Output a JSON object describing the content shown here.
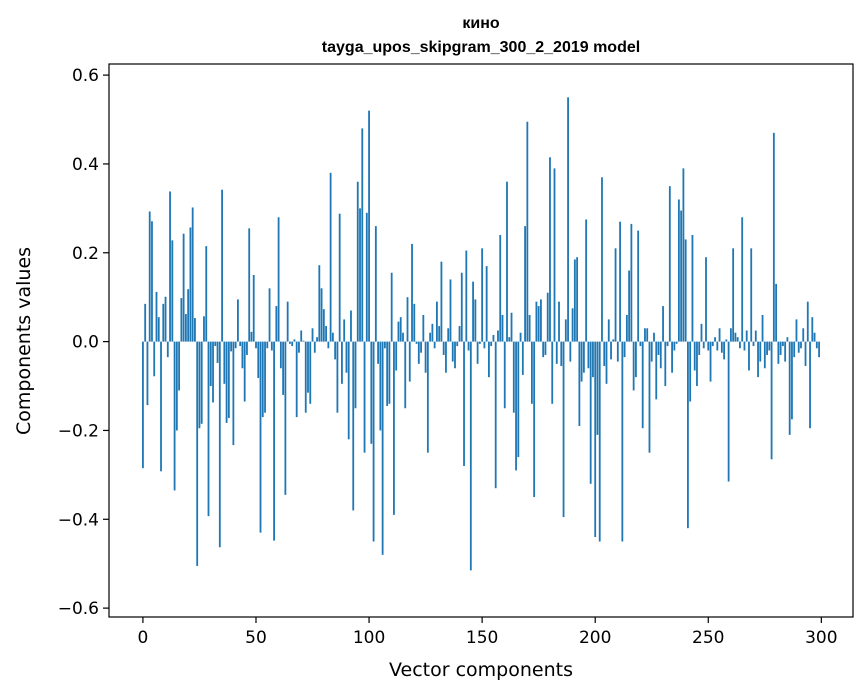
{
  "chart_data": {
    "type": "bar",
    "title": "кино",
    "subtitle": "tayga_upos_skipgram_300_2_2019 model",
    "xlabel": "Vector components",
    "ylabel": "Components values",
    "xlim": [
      -15,
      314
    ],
    "ylim": [
      -0.62,
      0.625
    ],
    "xticks": [
      0,
      50,
      100,
      150,
      200,
      250,
      300
    ],
    "xtick_labels": [
      "0",
      "50",
      "100",
      "150",
      "200",
      "250",
      "300"
    ],
    "yticks": [
      -0.6,
      -0.4,
      -0.2,
      0.0,
      0.2,
      0.4,
      0.6
    ],
    "ytick_labels": [
      "−0.6",
      "−0.4",
      "−0.2",
      "0.0",
      "0.2",
      "0.4",
      "0.6"
    ],
    "grid": false,
    "bar_color": "#1f77b4",
    "values": [
      -0.285,
      0.085,
      -0.143,
      0.293,
      0.271,
      -0.078,
      0.112,
      0.055,
      -0.292,
      0.085,
      0.101,
      -0.035,
      0.338,
      0.228,
      -0.335,
      -0.2,
      -0.11,
      0.098,
      0.243,
      0.062,
      0.118,
      0.257,
      0.302,
      0.053,
      -0.505,
      -0.195,
      -0.185,
      0.057,
      0.215,
      -0.393,
      -0.1,
      -0.137,
      -0.01,
      -0.048,
      -0.463,
      0.342,
      -0.095,
      -0.183,
      -0.172,
      -0.022,
      -0.233,
      -0.015,
      0.095,
      -0.01,
      -0.06,
      -0.135,
      -0.03,
      0.255,
      0.022,
      0.15,
      -0.015,
      -0.082,
      -0.43,
      -0.17,
      -0.16,
      -0.015,
      0.12,
      -0.02,
      -0.448,
      0.08,
      0.28,
      -0.06,
      -0.12,
      -0.345,
      0.09,
      -0.005,
      -0.01,
      0.005,
      -0.17,
      -0.025,
      0.025,
      0.002,
      -0.16,
      -0.115,
      -0.14,
      0.03,
      -0.025,
      0.01,
      0.172,
      0.12,
      0.073,
      0.035,
      -0.015,
      0.38,
      0.02,
      -0.04,
      -0.16,
      0.288,
      -0.095,
      0.05,
      -0.07,
      -0.22,
      0.07,
      -0.38,
      -0.15,
      0.36,
      0.3,
      0.48,
      -0.25,
      0.29,
      0.52,
      -0.23,
      -0.45,
      0.26,
      -0.05,
      -0.2,
      -0.48,
      -0.015,
      -0.145,
      -0.14,
      0.155,
      -0.39,
      -0.065,
      0.045,
      0.055,
      0.02,
      -0.15,
      0.1,
      -0.09,
      0.22,
      0.085,
      -0.005,
      -0.05,
      -0.025,
      0.06,
      -0.07,
      -0.25,
      0.02,
      0.04,
      -0.015,
      0.09,
      0.035,
      0.18,
      -0.03,
      -0.07,
      0.03,
      0.14,
      -0.045,
      -0.06,
      -0.01,
      0.035,
      0.155,
      -0.28,
      0.205,
      -0.02,
      -0.515,
      0.135,
      0.095,
      -0.05,
      -0.005,
      0.21,
      -0.015,
      0.17,
      -0.08,
      -0.01,
      0.015,
      -0.33,
      0.025,
      0.24,
      0.06,
      -0.15,
      0.36,
      0.01,
      0.065,
      -0.16,
      -0.29,
      -0.26,
      0.02,
      -0.075,
      0.26,
      0.495,
      0.06,
      -0.14,
      -0.35,
      0.09,
      0.08,
      0.095,
      -0.035,
      -0.03,
      0.11,
      0.415,
      -0.14,
      0.39,
      -0.05,
      0.09,
      -0.055,
      -0.395,
      0.05,
      0.55,
      -0.045,
      0.075,
      0.185,
      0.19,
      -0.19,
      -0.09,
      -0.07,
      0.275,
      -0.06,
      -0.32,
      -0.08,
      -0.44,
      -0.21,
      -0.45,
      0.37,
      -0.055,
      -0.095,
      0.05,
      -0.04,
      0.005,
      0.21,
      -0.045,
      0.27,
      -0.45,
      -0.035,
      0.06,
      0.16,
      0.265,
      -0.11,
      -0.08,
      0.25,
      -0.01,
      -0.195,
      0.03,
      0.03,
      -0.25,
      -0.045,
      0.02,
      -0.13,
      -0.03,
      -0.06,
      0.08,
      -0.1,
      -0.01,
      0.35,
      -0.07,
      -0.02,
      -0.005,
      0.32,
      0.295,
      0.39,
      0.23,
      -0.42,
      -0.135,
      0.24,
      -0.065,
      -0.1,
      -0.03,
      0.04,
      -0.015,
      0.19,
      -0.02,
      -0.09,
      -0.01,
      0.01,
      -0.02,
      0.03,
      -0.025,
      -0.04,
      0.005,
      -0.315,
      0.03,
      0.21,
      0.02,
      0.01,
      -0.015,
      0.28,
      -0.02,
      0.025,
      -0.065,
      0.21,
      -0.01,
      0.025,
      -0.08,
      -0.045,
      0.06,
      -0.06,
      -0.03,
      -0.02,
      -0.265,
      0.47,
      0.13,
      -0.05,
      -0.03,
      -0.01,
      -0.045,
      0.01,
      -0.21,
      -0.175,
      -0.035,
      0.05,
      -0.025,
      -0.015,
      0.03,
      -0.055,
      0.09,
      -0.195,
      0.055,
      0.02,
      -0.015,
      -0.035
    ]
  }
}
